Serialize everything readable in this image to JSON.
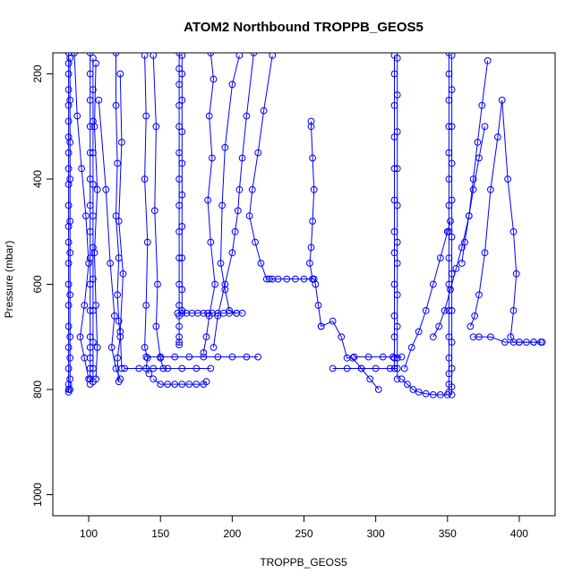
{
  "chart_data": {
    "type": "scatter",
    "title": "ATOM2 Northbound TROPPB_GEOS5",
    "xlabel": "TROPPB_GEOS5",
    "ylabel": "Pressure (mbar)",
    "xlim": [
      75,
      425
    ],
    "ylim": [
      1040,
      160
    ],
    "y_reversed": true,
    "x_ticks": [
      100,
      150,
      200,
      250,
      300,
      350,
      400
    ],
    "y_ticks": [
      200,
      400,
      600,
      800,
      1000
    ],
    "grid": false,
    "series_color": "#0000ff",
    "marker": "open-circle",
    "traces": [
      {
        "x": [
          86,
          86,
          86,
          86,
          86,
          86,
          86,
          86,
          86,
          86,
          86,
          86,
          86,
          86,
          86,
          86,
          86,
          86,
          86,
          86,
          86,
          86
        ],
        "y": [
          160,
          180,
          200,
          230,
          260,
          290,
          320,
          350,
          380,
          410,
          450,
          490,
          520,
          560,
          600,
          640,
          680,
          720,
          760,
          790,
          800,
          805
        ]
      },
      {
        "x": [
          87,
          87,
          87,
          87,
          87,
          87,
          87,
          87,
          87,
          87,
          87
        ],
        "y": [
          170,
          250,
          330,
          400,
          480,
          540,
          620,
          700,
          740,
          780,
          800
        ]
      },
      {
        "x": [
          90,
          92,
          95,
          98,
          100,
          97,
          94,
          97,
          100
        ],
        "y": [
          160,
          280,
          380,
          470,
          560,
          640,
          700,
          740,
          780
        ]
      },
      {
        "x": [
          101,
          101,
          101,
          101,
          101,
          101,
          101,
          101,
          101,
          101,
          101,
          101,
          101,
          101,
          101,
          101,
          101
        ],
        "y": [
          160,
          200,
          250,
          300,
          350,
          400,
          450,
          500,
          550,
          600,
          650,
          700,
          720,
          740,
          760,
          780,
          790
        ]
      },
      {
        "x": [
          103,
          103,
          103,
          103,
          103,
          103,
          103,
          103,
          103,
          103,
          103,
          103
        ],
        "y": [
          170,
          230,
          290,
          350,
          410,
          470,
          530,
          590,
          650,
          710,
          760,
          785
        ]
      },
      {
        "x": [
          105,
          104,
          106,
          104,
          105,
          106,
          105
        ],
        "y": [
          180,
          300,
          420,
          540,
          640,
          720,
          780
        ]
      },
      {
        "x": [
          107,
          112,
          115,
          118,
          116,
          119,
          122
        ],
        "y": [
          250,
          420,
          560,
          660,
          720,
          760,
          780
        ]
      },
      {
        "x": [
          119,
          119,
          120,
          119,
          121,
          120,
          121,
          122,
          120,
          121
        ],
        "y": [
          160,
          260,
          370,
          470,
          550,
          620,
          670,
          700,
          740,
          785
        ]
      },
      {
        "x": [
          122,
          123,
          121,
          124,
          122,
          123
        ],
        "y": [
          200,
          330,
          480,
          580,
          690,
          760
        ]
      },
      {
        "x": [
          139,
          140,
          139,
          141,
          140,
          139,
          141,
          140,
          142
        ],
        "y": [
          165,
          280,
          400,
          520,
          640,
          720,
          740,
          760,
          770
        ]
      },
      {
        "x": [
          145,
          147,
          146,
          148,
          147,
          150,
          152
        ],
        "y": [
          165,
          300,
          460,
          600,
          680,
          740,
          760
        ]
      },
      {
        "x": [
          163,
          163,
          163,
          163,
          163,
          163,
          163,
          163,
          163,
          163,
          163,
          163,
          163,
          163,
          163,
          163,
          163
        ],
        "y": [
          160,
          190,
          220,
          260,
          300,
          350,
          400,
          450,
          500,
          550,
          600,
          640,
          660,
          680,
          700,
          710,
          715
        ]
      },
      {
        "x": [
          165,
          165,
          165,
          165,
          165,
          165,
          165,
          165,
          165,
          165,
          165
        ],
        "y": [
          165,
          200,
          250,
          310,
          370,
          430,
          490,
          550,
          610,
          650,
          655
        ]
      },
      {
        "x": [
          162,
          168,
          172,
          176,
          180,
          183,
          186,
          190,
          194,
          198,
          203,
          207
        ],
        "y": [
          655,
          655,
          655,
          655,
          655,
          655,
          655,
          655,
          655,
          655,
          655,
          655
        ]
      },
      {
        "x": [
          140,
          150,
          160,
          170,
          180,
          190,
          200,
          210,
          218
        ],
        "y": [
          738,
          738,
          738,
          738,
          738,
          738,
          738,
          738,
          738
        ]
      },
      {
        "x": [
          125,
          135,
          145,
          155,
          165,
          175,
          185
        ],
        "y": [
          760,
          760,
          760,
          760,
          760,
          760,
          760
        ]
      },
      {
        "x": [
          145,
          150,
          155,
          160,
          165,
          170,
          175,
          180,
          182
        ],
        "y": [
          780,
          790,
          790,
          790,
          790,
          790,
          790,
          790,
          785
        ]
      },
      {
        "x": [
          185,
          187,
          184,
          186,
          183,
          185,
          188,
          184,
          182,
          180
        ],
        "y": [
          160,
          210,
          280,
          360,
          440,
          520,
          600,
          660,
          700,
          730
        ]
      },
      {
        "x": [
          205,
          200,
          195,
          193,
          192,
          195,
          198,
          203
        ],
        "y": [
          165,
          220,
          340,
          450,
          560,
          610,
          650,
          655
        ]
      },
      {
        "x": [
          215,
          210,
          207,
          205,
          204,
          202,
          200,
          195,
          190,
          187
        ],
        "y": [
          160,
          280,
          360,
          420,
          460,
          500,
          540,
          600,
          660,
          720
        ]
      },
      {
        "x": [
          228,
          222,
          218,
          214,
          212,
          216,
          220,
          224,
          226,
          228,
          232,
          238,
          244,
          250,
          256
        ],
        "y": [
          165,
          270,
          350,
          420,
          470,
          520,
          560,
          590,
          590,
          590,
          590,
          590,
          590,
          590,
          590
        ]
      },
      {
        "x": [
          255,
          255,
          256,
          257,
          256,
          255,
          254,
          256,
          257,
          258,
          260,
          262
        ],
        "y": [
          290,
          300,
          360,
          420,
          480,
          530,
          560,
          590,
          590,
          600,
          640,
          680
        ]
      },
      {
        "x": [
          262,
          270,
          276,
          280,
          284,
          290,
          296,
          302
        ],
        "y": [
          680,
          670,
          700,
          740,
          740,
          760,
          780,
          800
        ]
      },
      {
        "x": [
          270,
          280,
          290,
          300,
          310,
          315
        ],
        "y": [
          760,
          760,
          760,
          760,
          760,
          760
        ]
      },
      {
        "x": [
          285,
          295,
          305,
          312,
          318
        ],
        "y": [
          738,
          738,
          738,
          738,
          738
        ]
      },
      {
        "x": [
          313,
          313,
          313,
          313,
          313,
          313,
          313,
          313,
          313,
          313,
          313,
          313,
          313
        ],
        "y": [
          165,
          200,
          260,
          320,
          380,
          440,
          500,
          540,
          600,
          660,
          700,
          740,
          760
        ]
      },
      {
        "x": [
          315,
          315,
          315,
          315,
          315,
          315,
          315,
          315,
          315,
          315,
          315
        ],
        "y": [
          170,
          240,
          310,
          380,
          450,
          520,
          560,
          620,
          680,
          740,
          780
        ]
      },
      {
        "x": [
          318,
          322,
          326,
          330,
          335,
          340,
          345,
          350
        ],
        "y": [
          780,
          790,
          800,
          805,
          808,
          810,
          810,
          810
        ]
      },
      {
        "x": [
          320,
          325,
          330,
          335,
          340,
          345,
          350,
          352
        ],
        "y": [
          760,
          720,
          690,
          650,
          600,
          550,
          500,
          480
        ]
      },
      {
        "x": [
          351,
          351,
          351,
          351,
          351,
          351,
          351,
          351,
          351,
          351,
          351,
          351,
          351,
          351,
          351,
          351
        ],
        "y": [
          160,
          200,
          250,
          300,
          350,
          400,
          450,
          500,
          550,
          600,
          650,
          700,
          740,
          770,
          790,
          805
        ]
      },
      {
        "x": [
          353,
          353,
          353,
          353,
          353,
          353,
          353,
          353,
          353,
          353,
          353,
          353
        ],
        "y": [
          165,
          230,
          300,
          370,
          440,
          510,
          580,
          650,
          710,
          760,
          795,
          810
        ]
      },
      {
        "x": [
          340,
          344,
          348,
          352,
          356,
          360,
          365,
          368,
          371,
          374,
          378
        ],
        "y": [
          700,
          680,
          650,
          610,
          570,
          530,
          470,
          400,
          330,
          260,
          175
        ]
      },
      {
        "x": [
          366,
          369,
          372,
          376,
          380,
          385,
          388,
          392,
          396,
          398,
          396,
          394,
          396,
          400,
          405,
          410,
          415
        ],
        "y": [
          680,
          660,
          620,
          540,
          420,
          320,
          250,
          400,
          500,
          580,
          650,
          700,
          710,
          710,
          710,
          710,
          710
        ]
      },
      {
        "x": [
          360,
          362,
          365,
          368,
          372,
          376
        ],
        "y": [
          560,
          520,
          470,
          420,
          360,
          300
        ]
      },
      {
        "x": [
          368,
          372,
          380,
          390,
          400,
          410,
          416
        ],
        "y": [
          700,
          700,
          700,
          710,
          710,
          710,
          710
        ]
      }
    ]
  }
}
